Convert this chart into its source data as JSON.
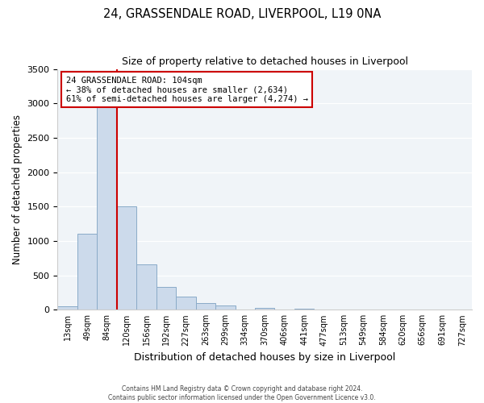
{
  "title": "24, GRASSENDALE ROAD, LIVERPOOL, L19 0NA",
  "subtitle": "Size of property relative to detached houses in Liverpool",
  "xlabel": "Distribution of detached houses by size in Liverpool",
  "ylabel": "Number of detached properties",
  "bin_labels": [
    "13sqm",
    "49sqm",
    "84sqm",
    "120sqm",
    "156sqm",
    "192sqm",
    "227sqm",
    "263sqm",
    "299sqm",
    "334sqm",
    "370sqm",
    "406sqm",
    "441sqm",
    "477sqm",
    "513sqm",
    "549sqm",
    "584sqm",
    "620sqm",
    "656sqm",
    "691sqm",
    "727sqm"
  ],
  "bar_values": [
    50,
    1100,
    2940,
    1500,
    660,
    330,
    190,
    100,
    60,
    0,
    30,
    0,
    15,
    0,
    0,
    0,
    0,
    0,
    0,
    0,
    0
  ],
  "bar_color": "#ccdaeb",
  "bar_edge_color": "#8aabc8",
  "vline_color": "#cc0000",
  "vline_x_index": 2.5,
  "ylim": [
    0,
    3500
  ],
  "yticks": [
    0,
    500,
    1000,
    1500,
    2000,
    2500,
    3000,
    3500
  ],
  "annotation_line1": "24 GRASSENDALE ROAD: 104sqm",
  "annotation_line2": "← 38% of detached houses are smaller (2,634)",
  "annotation_line3": "61% of semi-detached houses are larger (4,274) →",
  "annotation_box_color": "#ffffff",
  "annotation_box_edge": "#cc0000",
  "bg_color": "#f0f4f8",
  "footer_line1": "Contains HM Land Registry data © Crown copyright and database right 2024.",
  "footer_line2": "Contains public sector information licensed under the Open Government Licence v3.0."
}
